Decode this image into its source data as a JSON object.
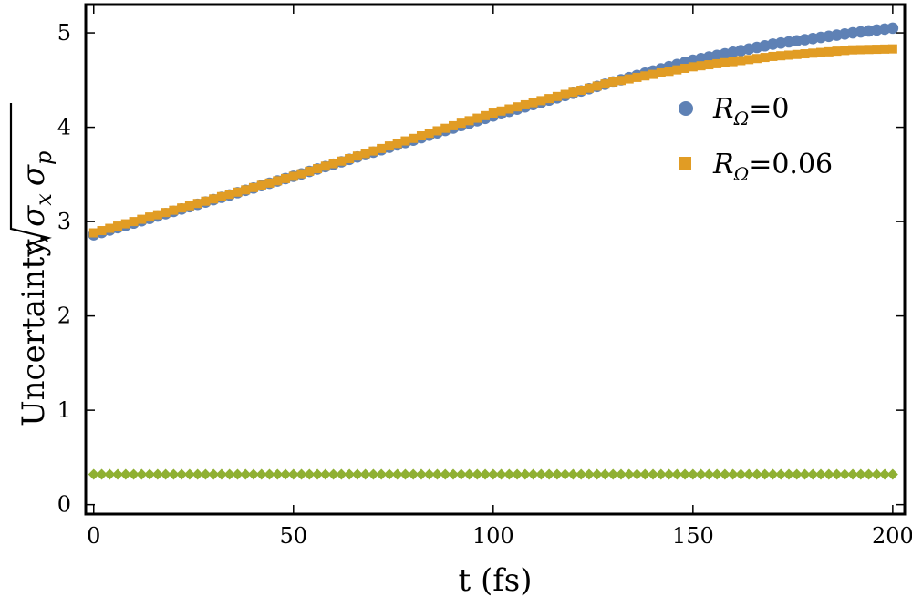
{
  "chart_data": {
    "type": "scatter",
    "xlabel": "t (fs)",
    "ylabel": {
      "prefix": "Uncertainty,",
      "radicand": [
        "σ",
        "x",
        "σ",
        "p"
      ]
    },
    "xlim": [
      -2,
      203
    ],
    "ylim": [
      -0.1,
      5.3
    ],
    "x_ticks": [
      0,
      50,
      100,
      150,
      200
    ],
    "y_ticks": [
      0,
      1,
      2,
      3,
      4,
      5
    ],
    "grid": false,
    "legend_position": "right",
    "x_range": {
      "start": 0,
      "end": 200,
      "step": 2
    },
    "series": [
      {
        "label": "R_Ω=0",
        "legend_label": {
          "symbol": "R",
          "subscript": "Ω",
          "value": "=0"
        },
        "marker": "circle",
        "color": "#5E81B5",
        "anchors": [
          [
            0,
            2.86
          ],
          [
            50,
            3.48
          ],
          [
            100,
            4.12
          ],
          [
            130,
            4.48
          ],
          [
            150,
            4.71
          ],
          [
            170,
            4.88
          ],
          [
            190,
            5.0
          ],
          [
            200,
            5.05
          ]
        ]
      },
      {
        "label": "R_Ω=0.06",
        "legend_label": {
          "symbol": "R",
          "subscript": "Ω",
          "value": "=0.06"
        },
        "marker": "square",
        "color": "#E19C24",
        "anchors": [
          [
            0,
            2.88
          ],
          [
            50,
            3.48
          ],
          [
            100,
            4.15
          ],
          [
            130,
            4.48
          ],
          [
            150,
            4.64
          ],
          [
            170,
            4.75
          ],
          [
            190,
            4.82
          ],
          [
            200,
            4.83
          ]
        ]
      },
      {
        "label": "",
        "marker": "diamond",
        "color": "#8FB032",
        "anchors": [
          [
            0,
            0.32
          ],
          [
            200,
            0.32
          ]
        ]
      }
    ]
  }
}
